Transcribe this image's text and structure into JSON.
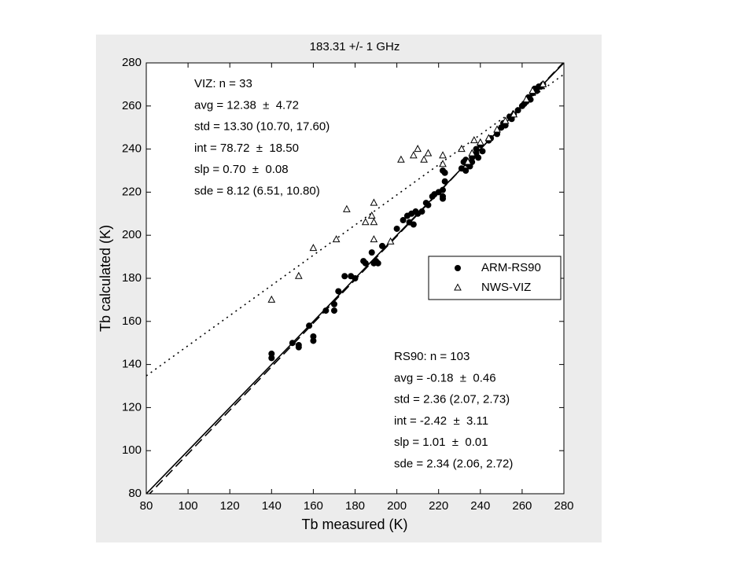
{
  "chart_data": {
    "type": "scatter",
    "title": "183.31 +/- 1 GHz",
    "x_label": "Tb measured (K)",
    "y_label": "Tb calculated (K)",
    "xlim": [
      80,
      280
    ],
    "ylim": [
      80,
      280
    ],
    "xticks": [
      80,
      100,
      120,
      140,
      160,
      180,
      200,
      220,
      240,
      260,
      280
    ],
    "yticks": [
      80,
      100,
      120,
      140,
      160,
      180,
      200,
      220,
      240,
      260,
      280
    ],
    "legend_position": "right",
    "series": [
      {
        "name": "ARM-RS90",
        "color": "#000000",
        "marker": "circle",
        "x": [
          140,
          140,
          150,
          153,
          153,
          158,
          160,
          160,
          166,
          170,
          170,
          172,
          175,
          178,
          180,
          184,
          185,
          188,
          189,
          190,
          191,
          193,
          200,
          203,
          205,
          206,
          207,
          208,
          209,
          210,
          212,
          214,
          215,
          217,
          218,
          220,
          222,
          222,
          222,
          223,
          223,
          231,
          232,
          233,
          233,
          235,
          236,
          237,
          238,
          239,
          240,
          241,
          244,
          245,
          248,
          250,
          251,
          252,
          254,
          255,
          256,
          258,
          260,
          261,
          262,
          263,
          264,
          265,
          266,
          267,
          268,
          269,
          270,
          222,
          234,
          236,
          238
        ],
        "values": [
          143,
          145,
          150,
          149,
          148,
          158,
          151,
          153,
          165,
          165,
          168,
          174,
          181,
          181,
          180,
          188,
          187,
          192,
          187,
          188,
          187,
          195,
          203,
          207,
          209,
          206,
          210,
          205,
          211,
          210,
          211,
          215,
          214,
          218,
          219,
          220,
          217,
          218,
          221,
          225,
          229,
          231,
          234,
          235,
          230,
          232,
          236,
          237,
          240,
          236,
          242,
          239,
          244,
          245,
          247,
          250,
          252,
          251,
          255,
          254,
          256,
          258,
          260,
          261,
          262,
          264,
          263,
          266,
          268,
          267,
          269,
          269,
          270,
          230,
          233,
          234,
          238
        ]
      },
      {
        "name": "NWS-VIZ",
        "color": "#000000",
        "marker": "triangle",
        "x": [
          140,
          153,
          160,
          171,
          176,
          185,
          188,
          189,
          189,
          189,
          197,
          202,
          208,
          210,
          213,
          215,
          222,
          222,
          231,
          237,
          240,
          244,
          248,
          252,
          256,
          262,
          265,
          270,
          234,
          236
        ],
        "values": [
          170,
          181,
          194,
          198,
          212,
          206,
          209,
          215,
          198,
          206,
          197,
          235,
          237,
          240,
          235,
          238,
          237,
          233,
          240,
          244,
          243,
          245,
          249,
          253,
          256,
          263,
          267,
          270,
          234,
          238
        ]
      }
    ],
    "lines": [
      {
        "style": "solid",
        "x": [
          80,
          280
        ],
        "values": [
          80,
          280
        ]
      },
      {
        "style": "dashed",
        "x": [
          80,
          280
        ],
        "values": [
          78.38,
          280.38
        ]
      },
      {
        "style": "dotted",
        "x": [
          80,
          280
        ],
        "values": [
          134.72,
          274.72
        ]
      }
    ],
    "annotations": [
      {
        "lines": [
          "VIZ: n = 33",
          "avg = 12.38  ±  4.72",
          "std = 13.30 (10.70, 17.60)",
          "int = 78.72  ±  18.50",
          "slp = 0.70  ±  0.08",
          "sde = 8.12 (6.51, 10.80)"
        ]
      },
      {
        "lines": [
          "RS90: n = 103",
          "avg = -0.18  ±  0.46",
          "std = 2.36 (2.07, 2.73)",
          "int = -2.42  ±  3.11",
          "slp = 1.01  ±  0.01",
          "sde = 2.34 (2.06, 2.72)"
        ]
      }
    ]
  }
}
